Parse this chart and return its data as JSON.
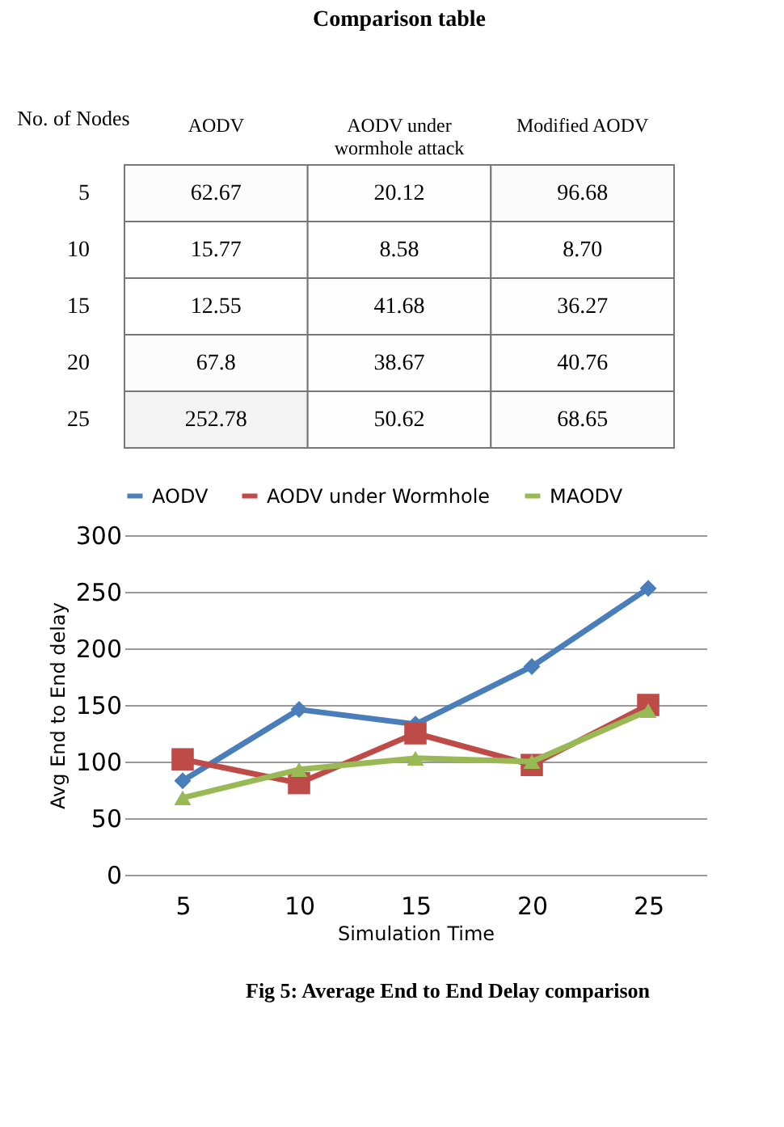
{
  "chart_data": [
    {
      "type": "heatmap",
      "title": "Comparison table",
      "ylabel": "No. of Nodes",
      "categories": [
        "AODV",
        "AODV under wormhole attack",
        "Modified AODV"
      ],
      "y_categories": [
        "5",
        "10",
        "15",
        "20",
        "25"
      ],
      "cells": [
        [
          62.67,
          20.12,
          96.68
        ],
        [
          15.77,
          8.58,
          8.7
        ],
        [
          12.55,
          41.68,
          36.27
        ],
        [
          67.8,
          38.67,
          40.76
        ],
        [
          252.78,
          50.62,
          68.65
        ]
      ],
      "cell_labels": [
        [
          "62.67",
          "20.12",
          "96.68"
        ],
        [
          "15.77",
          "8.58",
          "8.70"
        ],
        [
          "12.55",
          "41.68",
          "36.27"
        ],
        [
          "67.8",
          "38.67",
          "40.76"
        ],
        [
          "252.78",
          "50.62",
          "68.65"
        ]
      ]
    },
    {
      "type": "line",
      "xlabel": "Simulation Time",
      "ylabel": "Avg End to End delay",
      "categories": [
        "5",
        "10",
        "15",
        "20",
        "25"
      ],
      "series": [
        {
          "name": "AODV",
          "color": "#4a7ebb",
          "marker": "diamond",
          "values": [
            83,
            146,
            133,
            184,
            253
          ]
        },
        {
          "name": "AODV under Wormhole",
          "color": "#be4b48",
          "marker": "square",
          "values": [
            102,
            81,
            125,
            97,
            150
          ]
        },
        {
          "name": "MAODV",
          "color": "#98b954",
          "marker": "triangle",
          "values": [
            68,
            93,
            103,
            100,
            145
          ]
        }
      ],
      "ylim": [
        0,
        300
      ],
      "yticks": [
        0,
        50,
        100,
        150,
        200,
        250,
        300
      ],
      "grid": "y",
      "legend": "top",
      "line_style": "solid",
      "annotations": [
        "Fig 5: Average  End to End Delay comparison"
      ]
    }
  ]
}
